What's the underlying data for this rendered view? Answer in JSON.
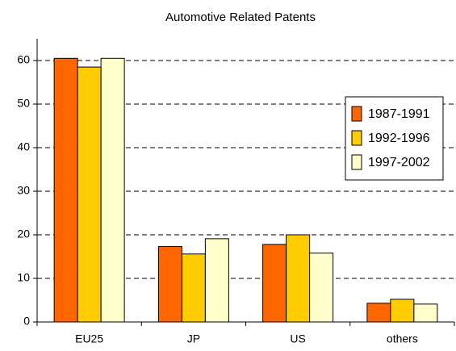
{
  "chart_data": {
    "type": "bar",
    "title": "Automotive Related Patents",
    "categories": [
      "EU25",
      "JP",
      "US",
      "others"
    ],
    "series": [
      {
        "name": "1987-1991",
        "color": "#ff6600",
        "values": [
          60.5,
          17.3,
          17.8,
          4.3
        ]
      },
      {
        "name": "1992-1996",
        "color": "#ffcc00",
        "values": [
          58.5,
          15.6,
          20.0,
          5.2
        ]
      },
      {
        "name": "1997-2002",
        "color": "#ffffcc",
        "values": [
          60.5,
          19.1,
          15.8,
          4.1
        ]
      }
    ],
    "ylim": [
      0,
      65
    ],
    "yticks": [
      0,
      10,
      20,
      30,
      40,
      50,
      60
    ],
    "grid": true,
    "legend": "right"
  }
}
